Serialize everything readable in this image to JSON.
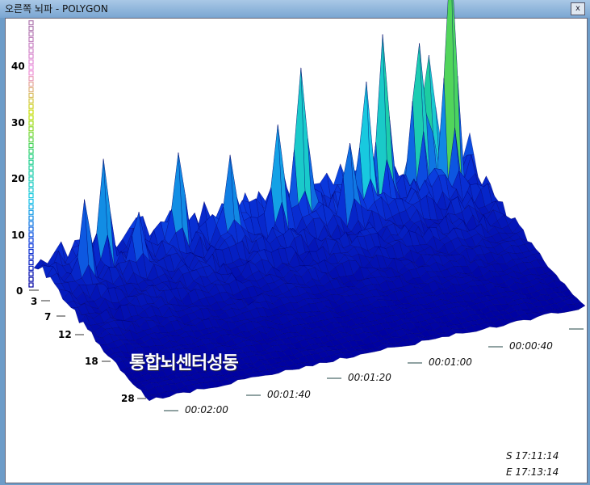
{
  "window": {
    "title": "오른쪽 뇌파 - POLYGON",
    "close_label": "x"
  },
  "chart_data": {
    "type": "surface3d",
    "z_ticks": [
      "0",
      "10",
      "20",
      "30",
      "40"
    ],
    "z_range": [
      0,
      46
    ],
    "freq_ticks": [
      "3",
      "7",
      "12",
      "18",
      "28"
    ],
    "time_ticks": [
      "00:02:00",
      "00:01:40",
      "00:01:20",
      "00:01:00",
      "00:00:40"
    ],
    "start_label": "S 17:11:14",
    "end_label": "E 17:13:14",
    "colorscale": [
      "#0000a0",
      "#0a3adf",
      "#17c8e8",
      "#20d080",
      "#c8e000",
      "#f090e0",
      "#b07ab0"
    ],
    "watermark": "통합뇌센터성동"
  }
}
